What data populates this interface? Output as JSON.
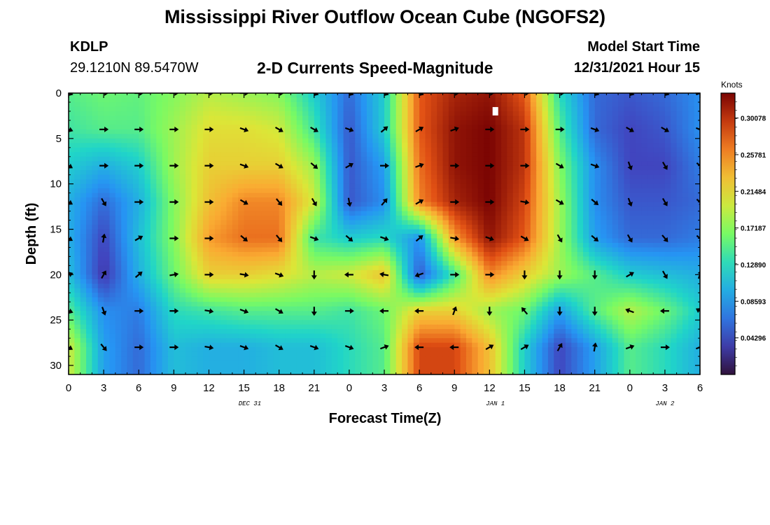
{
  "header": {
    "title": "Mississippi River Outflow Ocean Cube (NGOFS2)",
    "station": "KDLP",
    "coords": "29.1210N  89.5470W",
    "subtitle": "2-D Currents Speed-Magnitude",
    "model_start_label": "Model Start Time",
    "model_start_value": "12/31/2021 Hour 15"
  },
  "footer": {
    "title": "Mississippi River Outflow Ocean Cube (NGOFS2)"
  },
  "chart_data": {
    "type": "heatmap",
    "xlabel": "Forecast Time(Z)",
    "ylabel": "Depth (ft)",
    "x_tick_labels": [
      "0",
      "3",
      "6",
      "9",
      "12",
      "15",
      "18",
      "21",
      "0",
      "3",
      "6",
      "9",
      "12",
      "15",
      "18",
      "21",
      "0",
      "3",
      "6"
    ],
    "date_labels": [
      {
        "label": "DEC 31",
        "hour": 15.5
      },
      {
        "label": "JAN 1",
        "hour": 36.5
      },
      {
        "label": "JAN 2",
        "hour": 51
      }
    ],
    "xlim": [
      0,
      54
    ],
    "ylim": [
      0,
      31
    ],
    "y_ticks": [
      0,
      5,
      10,
      15,
      20,
      25,
      30
    ],
    "colorbar": {
      "unit": "Knots",
      "min": 0.0,
      "max": 0.33,
      "tick_labels": [
        "0.30078",
        "0.25781",
        "0.21484",
        "0.17187",
        "0.12890",
        "0.08593",
        "0.04296"
      ],
      "tick_values": [
        0.30078,
        0.25781,
        0.21484,
        0.17187,
        0.1289,
        0.08593,
        0.04296
      ]
    },
    "arrow_times": [
      0,
      3,
      6,
      9,
      12,
      15,
      18,
      21,
      24,
      27,
      30,
      33,
      36,
      39,
      42,
      45,
      48,
      51,
      54
    ],
    "arrow_depths": [
      0,
      4,
      8,
      12,
      16,
      20,
      24,
      28
    ],
    "arrow_directions_deg": [
      [
        20,
        0,
        0,
        0,
        0,
        0,
        0,
        20,
        20,
        20,
        20,
        0,
        0,
        0,
        0,
        20,
        20,
        20,
        -20
      ],
      [
        20,
        0,
        0,
        0,
        0,
        20,
        30,
        30,
        20,
        -40,
        -30,
        -20,
        0,
        0,
        0,
        20,
        30,
        30,
        20
      ],
      [
        30,
        0,
        0,
        0,
        0,
        20,
        30,
        40,
        -30,
        0,
        -20,
        0,
        0,
        0,
        30,
        20,
        70,
        60,
        40
      ],
      [
        30,
        60,
        0,
        0,
        0,
        30,
        50,
        60,
        80,
        -50,
        -30,
        0,
        0,
        10,
        30,
        40,
        70,
        60,
        40
      ],
      [
        30,
        -80,
        -30,
        0,
        0,
        40,
        50,
        20,
        40,
        20,
        -40,
        10,
        20,
        30,
        60,
        40,
        60,
        50,
        40
      ],
      [
        -20,
        -60,
        -40,
        -10,
        0,
        10,
        20,
        90,
        180,
        190,
        160,
        0,
        0,
        90,
        90,
        90,
        -30,
        60,
        -70
      ],
      [
        20,
        70,
        0,
        0,
        10,
        20,
        30,
        90,
        0,
        180,
        180,
        -70,
        90,
        -130,
        90,
        90,
        -160,
        180,
        -150
      ],
      [
        30,
        50,
        0,
        0,
        10,
        20,
        30,
        20,
        20,
        -20,
        180,
        180,
        -30,
        -30,
        -60,
        -80,
        -20,
        0,
        -20
      ]
    ],
    "speed_grid_depths": [
      0,
      4,
      8,
      12,
      16,
      20,
      24,
      28,
      31
    ],
    "speed_grid_times": [
      0,
      3,
      6,
      9,
      12,
      15,
      18,
      21,
      24,
      27,
      30,
      33,
      36,
      39,
      42,
      45,
      48,
      51,
      54
    ],
    "speed_grid_knots": [
      [
        0.15,
        0.16,
        0.155,
        0.17,
        0.19,
        0.18,
        0.17,
        0.12,
        0.06,
        0.12,
        0.28,
        0.31,
        0.32,
        0.28,
        0.13,
        0.06,
        0.05,
        0.06,
        0.08
      ],
      [
        0.14,
        0.15,
        0.15,
        0.18,
        0.21,
        0.21,
        0.2,
        0.14,
        0.05,
        0.12,
        0.28,
        0.32,
        0.33,
        0.3,
        0.15,
        0.06,
        0.04,
        0.05,
        0.08
      ],
      [
        0.12,
        0.1,
        0.12,
        0.18,
        0.22,
        0.22,
        0.22,
        0.18,
        0.05,
        0.09,
        0.27,
        0.32,
        0.33,
        0.3,
        0.17,
        0.08,
        0.04,
        0.04,
        0.07
      ],
      [
        0.1,
        0.06,
        0.1,
        0.17,
        0.23,
        0.26,
        0.26,
        0.2,
        0.05,
        0.08,
        0.26,
        0.31,
        0.33,
        0.29,
        0.18,
        0.08,
        0.05,
        0.05,
        0.06
      ],
      [
        0.1,
        0.04,
        0.11,
        0.17,
        0.25,
        0.27,
        0.27,
        0.14,
        0.12,
        0.13,
        0.08,
        0.25,
        0.32,
        0.28,
        0.18,
        0.09,
        0.06,
        0.06,
        0.07
      ],
      [
        0.11,
        0.03,
        0.1,
        0.16,
        0.22,
        0.22,
        0.21,
        0.19,
        0.2,
        0.23,
        0.05,
        0.14,
        0.26,
        0.22,
        0.18,
        0.15,
        0.12,
        0.11,
        0.1
      ],
      [
        0.15,
        0.08,
        0.07,
        0.13,
        0.14,
        0.15,
        0.15,
        0.15,
        0.14,
        0.16,
        0.22,
        0.22,
        0.18,
        0.16,
        0.09,
        0.15,
        0.19,
        0.16,
        0.12
      ],
      [
        0.2,
        0.09,
        0.06,
        0.11,
        0.1,
        0.1,
        0.11,
        0.11,
        0.13,
        0.15,
        0.29,
        0.29,
        0.23,
        0.12,
        0.04,
        0.09,
        0.15,
        0.13,
        0.1
      ],
      [
        0.2,
        0.09,
        0.06,
        0.11,
        0.1,
        0.1,
        0.11,
        0.11,
        0.13,
        0.15,
        0.29,
        0.29,
        0.23,
        0.12,
        0.04,
        0.09,
        0.15,
        0.13,
        0.1
      ]
    ],
    "marker": {
      "hour": 36.5,
      "depth": 2
    },
    "grid": false,
    "legend": "colorbar-right"
  }
}
